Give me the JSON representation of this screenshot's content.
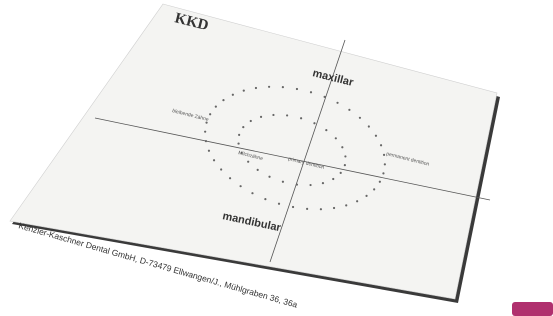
{
  "card": {
    "logo": "KKD",
    "upper_label": "maxillar",
    "lower_label": "mandibular",
    "left_label": "bleibende Zähne",
    "center_left_label": "Milchzähne",
    "center_right_label": "primary dentition",
    "right_label": "permanent dentition",
    "footer": "Kenzler-Kaschner Dental GmbH, D-73479 Ellwangen/J., Mühlgraben 36, 36a"
  }
}
